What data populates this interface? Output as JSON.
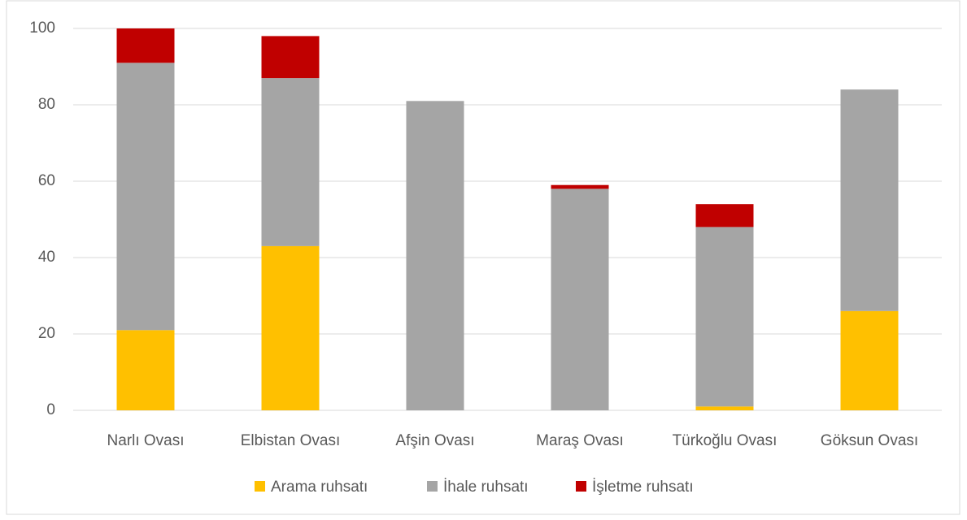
{
  "chart_data": {
    "type": "stacked_bar",
    "categories": [
      "Narlı Ovası",
      "Elbistan Ovası",
      "Afşin Ovası",
      "Maraş Ovası",
      "Türkoğlu Ovası",
      "Göksun Ovası"
    ],
    "series": [
      {
        "name": "Arama ruhsatı",
        "color": "#ffc000",
        "values": [
          21,
          43,
          0,
          0,
          1,
          26
        ]
      },
      {
        "name": "İhale ruhsatı",
        "color": "#a5a5a5",
        "values": [
          70,
          44,
          81,
          58,
          47,
          58
        ]
      },
      {
        "name": "İşletme ruhsatı",
        "color": "#c00000",
        "values": [
          9,
          11,
          0,
          1,
          6,
          0
        ]
      }
    ],
    "ylim": [
      0,
      100
    ],
    "yticks": [
      0,
      20,
      40,
      60,
      80,
      100
    ],
    "grid": true,
    "legend": "bottom"
  }
}
